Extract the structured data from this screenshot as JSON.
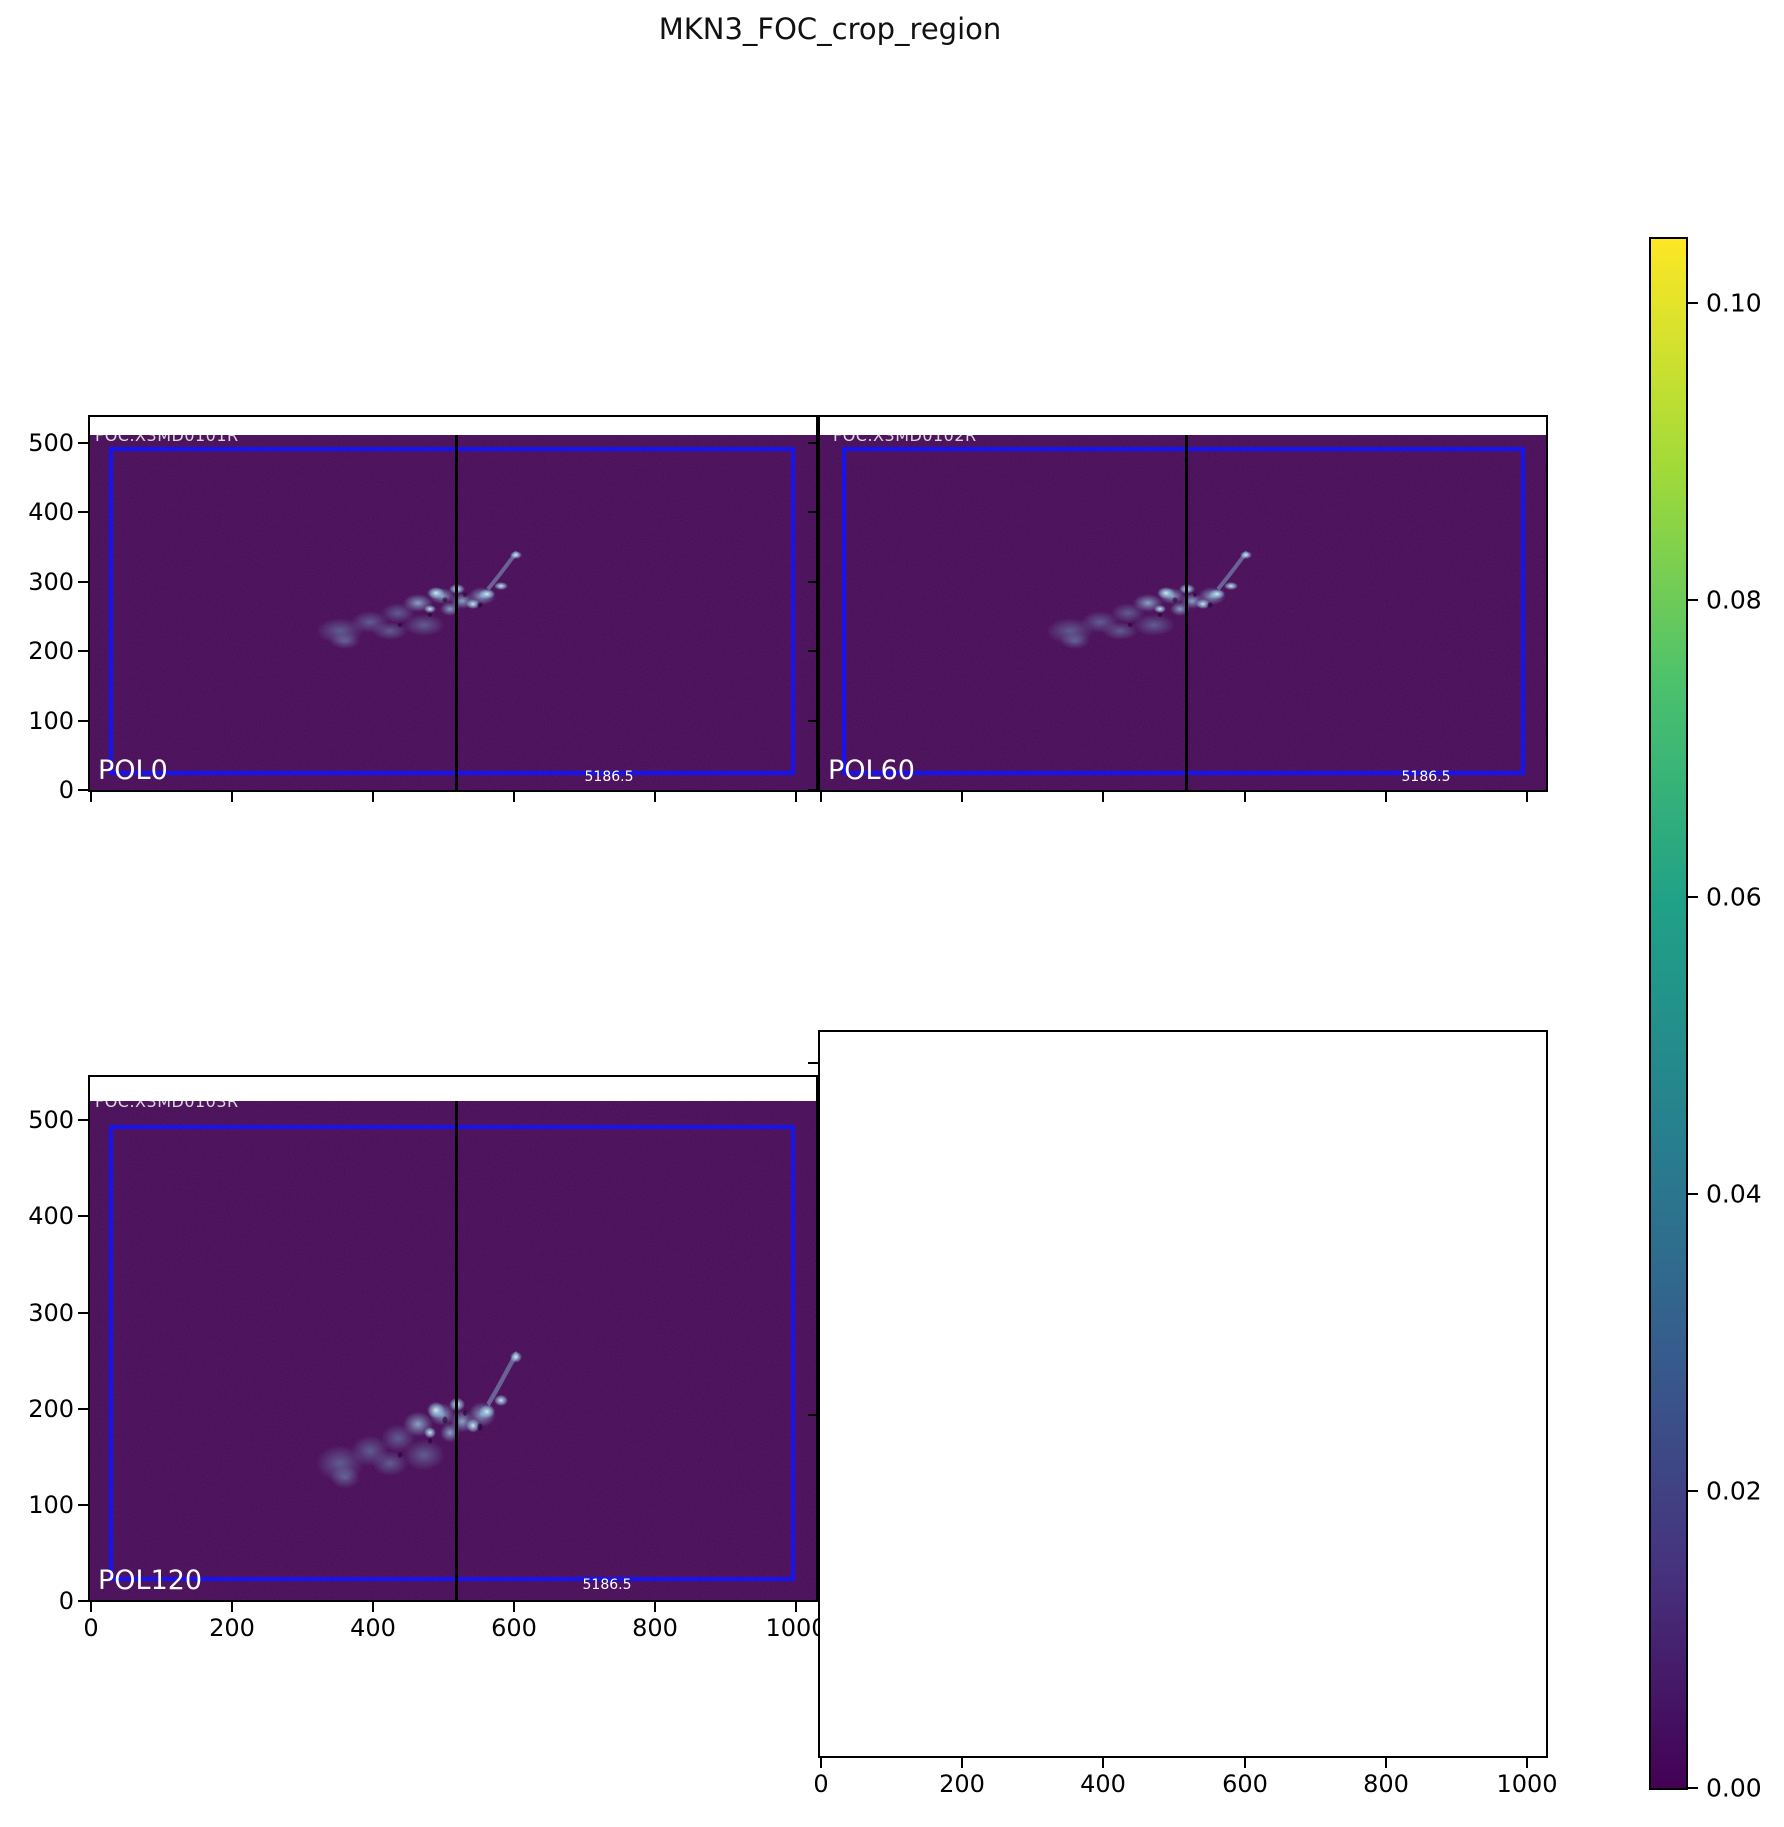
{
  "title": "MKN3_FOC_crop_region",
  "panels": [
    {
      "id": "pol0",
      "frame_label": "FOC.X3MD0101R",
      "pol_label": "POL0",
      "flux_label": "5186.5"
    },
    {
      "id": "pol60",
      "frame_label": "FOC.X3MD0102R",
      "pol_label": "POL60",
      "flux_label": "5186.5"
    },
    {
      "id": "pol120",
      "frame_label": "FOC.X3MD0103R",
      "pol_label": "POL120",
      "flux_label": "5186.5"
    },
    {
      "id": "empty"
    }
  ],
  "axis_tick_labels": {
    "y_left_column": [
      "500",
      "400",
      "300",
      "200",
      "100",
      "0"
    ],
    "x_bottom_left": [
      "0",
      "200",
      "400",
      "600",
      "800",
      "1000"
    ],
    "x_bottom_right": [
      "0",
      "200",
      "400",
      "600",
      "800",
      "1000"
    ]
  },
  "colorbar_tick_labels": [
    "0.10",
    "0.08",
    "0.06",
    "0.04",
    "0.02",
    "0.00"
  ],
  "colors": {
    "image_background": "#440a54",
    "crop_rectangle": "#1414f2",
    "marker_line": "#000000",
    "colormap": "viridis"
  },
  "chart_data": {
    "type": "heatmap",
    "title": "MKN3_FOC_crop_region",
    "layout": "2x2 image grid, shared axes, colorbar at right, bottom-right panel empty",
    "panels": [
      {
        "label": "POL0",
        "frame_id": "FOC.X3MD0101R",
        "annotation": "5186.5",
        "vline_x": 512,
        "crop_box": {
          "x0": 23,
          "y0": 10,
          "x1": 1012,
          "y1": 497
        },
        "feature": "faint cyan emission knot centered near x=420, y=290"
      },
      {
        "label": "POL60",
        "frame_id": "FOC.X3MD0102R",
        "annotation": "5186.5",
        "vline_x": 512,
        "crop_box": {
          "x0": 23,
          "y0": 10,
          "x1": 1012,
          "y1": 497
        },
        "feature": "faint cyan emission knot centered near x=420, y=290"
      },
      {
        "label": "POL120",
        "frame_id": "FOC.X3MD0103R",
        "annotation": "5186.5",
        "vline_x": 512,
        "crop_box": {
          "x0": 23,
          "y0": 10,
          "x1": 1012,
          "y1": 497
        },
        "feature": "faint cyan emission knot centered near x=420, y=300"
      },
      {
        "label": null,
        "empty": true
      }
    ],
    "xticks": [
      0,
      200,
      400,
      600,
      800,
      1000
    ],
    "yticks": [
      0,
      100,
      200,
      300,
      400,
      500
    ],
    "xlim": [
      0,
      1035
    ],
    "ylim": [
      0,
      540
    ],
    "colorbar": {
      "cmap": "viridis",
      "vmin": 0.0,
      "vmax": 0.104,
      "ticks": [
        0.0,
        0.02,
        0.04,
        0.06,
        0.08,
        0.1
      ]
    },
    "grid": false,
    "legend": false
  }
}
